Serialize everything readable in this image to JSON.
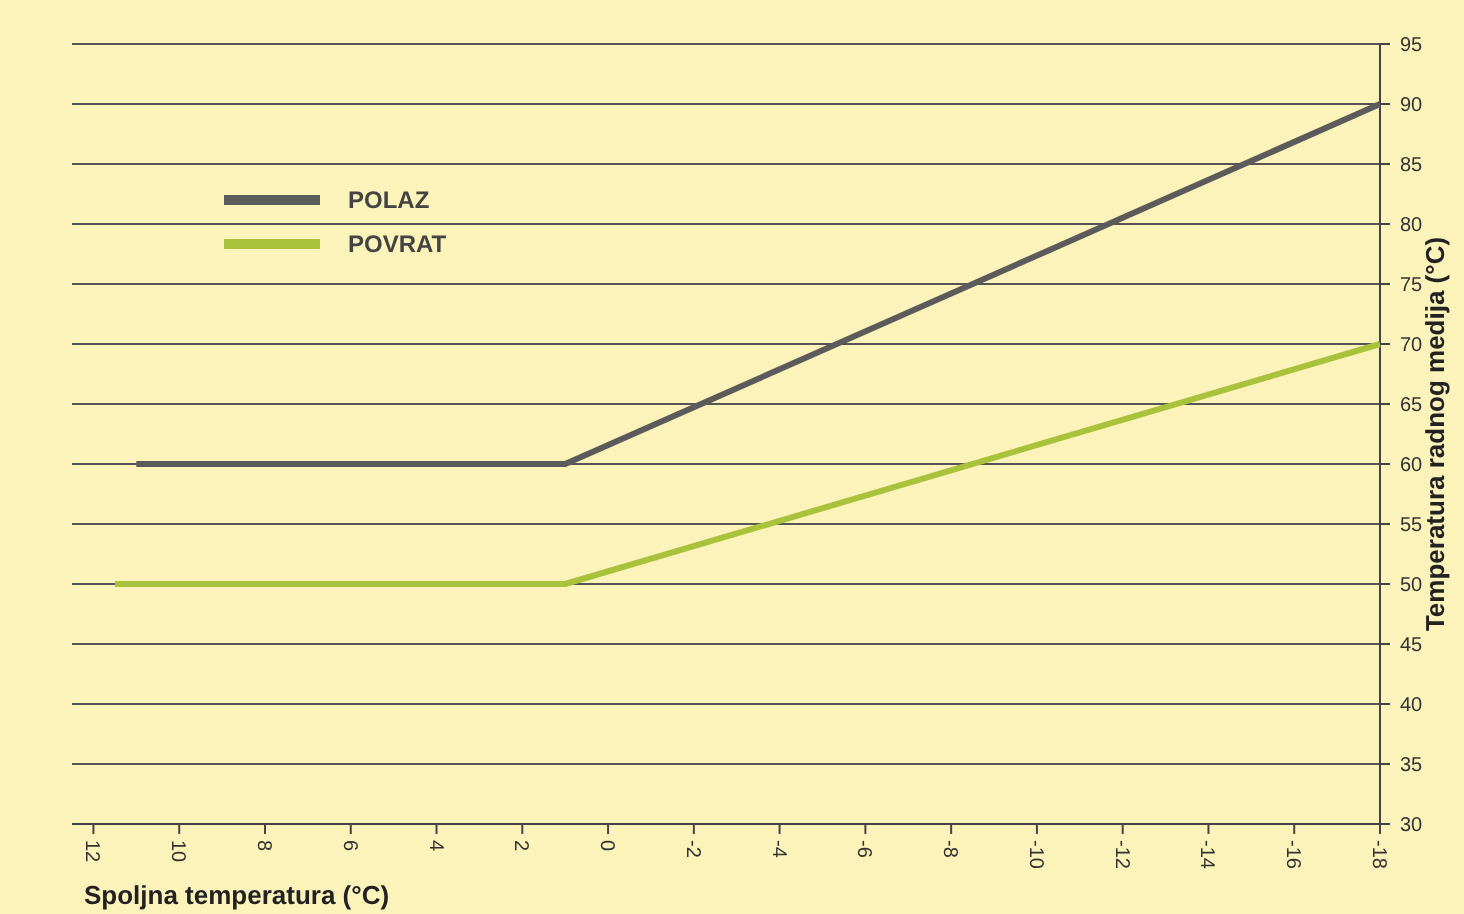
{
  "chart_data": {
    "type": "line",
    "xlabel": "Spoljna temperatura (°C)",
    "ylabel": "Temperatura radnog medija (°C)",
    "xlim": [
      12.5,
      -18
    ],
    "xticks": [
      12,
      10,
      8,
      6,
      4,
      2,
      0,
      -2,
      -4,
      -6,
      -8,
      -10,
      -12,
      -14,
      -16,
      -18
    ],
    "ylim": [
      30,
      95
    ],
    "yticks": [
      30,
      35,
      40,
      45,
      50,
      55,
      60,
      65,
      70,
      75,
      80,
      85,
      90,
      95
    ],
    "grid": "y",
    "legend": "top left",
    "line_style": "solid",
    "marker": "none",
    "series": [
      {
        "name": "POLAZ",
        "color": "#5b5b5b",
        "x": [
          11,
          1,
          -18
        ],
        "values": [
          60,
          60,
          90
        ]
      },
      {
        "name": "POVRAT",
        "color": "#a8c23c",
        "x": [
          11.5,
          1,
          -18
        ],
        "values": [
          50,
          50,
          70
        ]
      }
    ]
  }
}
